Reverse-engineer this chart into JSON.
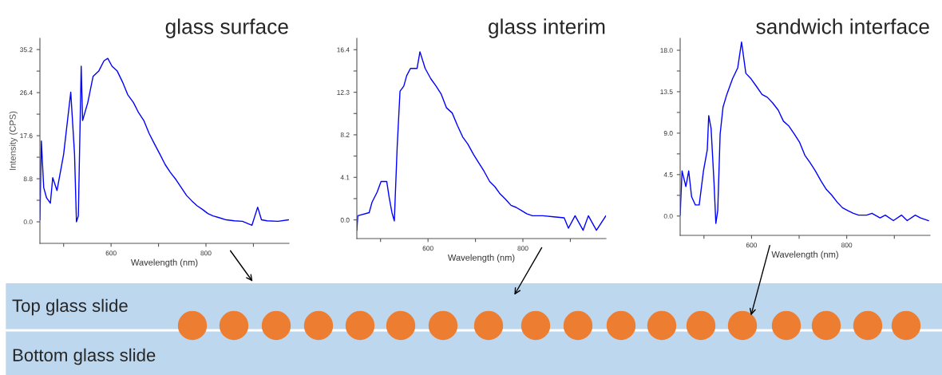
{
  "chart_data": [
    {
      "type": "line",
      "title": "glass surface",
      "xlabel": "Wavelength (nm)",
      "ylabel": "Intensity (CPS)",
      "x": [
        450,
        453,
        458,
        464,
        472,
        477,
        486,
        500,
        515,
        523,
        527,
        531,
        537,
        540,
        551,
        562,
        574,
        585,
        593,
        602,
        613,
        624,
        635,
        647,
        658,
        669,
        680,
        691,
        703,
        714,
        725,
        737,
        748,
        759,
        770,
        781,
        793,
        804,
        815,
        826,
        843,
        860,
        877,
        897,
        909,
        917,
        929,
        952,
        974
      ],
      "series": [
        {
          "color": "#0000ff",
          "values": [
            0.4,
            16.5,
            7,
            4.9,
            3.8,
            9,
            6.4,
            13.8,
            26.5,
            13.8,
            0,
            1.2,
            31.8,
            20.7,
            24.4,
            29.7,
            30.8,
            32.9,
            33.4,
            31.8,
            30.8,
            28.6,
            26,
            24.4,
            22.3,
            20.7,
            18.1,
            16,
            13.8,
            11.7,
            10.1,
            8.6,
            7,
            5.4,
            4.3,
            3.3,
            2.5,
            1.7,
            1.2,
            0.9,
            0.4,
            0.2,
            0.1,
            -0.7,
            3,
            0.4,
            0.2,
            0.1,
            0.4
          ]
        }
      ],
      "xlim": [
        450,
        975
      ],
      "ylim": [
        -4.4,
        37.5
      ],
      "xticks": [
        {
          "value": 500,
          "label": null
        },
        600,
        {
          "value": 700,
          "label": null
        },
        800,
        {
          "value": 900,
          "label": null
        }
      ],
      "yticks": [
        {
          "value": 0,
          "label": "0.0"
        },
        {
          "value": 4.4,
          "label": null
        },
        8.8,
        {
          "value": 13.2,
          "label": null
        },
        17.6,
        {
          "value": 22,
          "label": null
        },
        26.4,
        {
          "value": 30.8,
          "label": null
        },
        35.2
      ],
      "grid": false,
      "legend": false
    },
    {
      "type": "line",
      "title": "glass interim",
      "xlabel": "Wavelength (nm)",
      "x": [
        450,
        452,
        476,
        482,
        493,
        501,
        513,
        518,
        524,
        529,
        535,
        541,
        549,
        555,
        563,
        577,
        583,
        594,
        606,
        617,
        628,
        639,
        651,
        662,
        673,
        684,
        696,
        707,
        718,
        730,
        741,
        752,
        763,
        775,
        786,
        797,
        808,
        820,
        842,
        865,
        887,
        896,
        910,
        927,
        938,
        955,
        975
      ],
      "series": [
        {
          "color": "#0000ff",
          "values": [
            -1,
            0.4,
            0.7,
            1.7,
            2.7,
            3.7,
            3.7,
            2.2,
            0.7,
            -0.1,
            7,
            12.4,
            12.9,
            13.9,
            14.6,
            14.6,
            16.2,
            14.6,
            13.6,
            12.9,
            12.1,
            10.8,
            10.3,
            9.1,
            8,
            7.3,
            6.3,
            5.5,
            4.7,
            3.7,
            3.2,
            2.5,
            2,
            1.4,
            1.2,
            0.9,
            0.6,
            0.4,
            0.4,
            0.3,
            0.2,
            -0.8,
            0.4,
            -1,
            0.4,
            -1,
            0.4
          ]
        }
      ],
      "xlim": [
        450,
        975
      ],
      "ylim": [
        -1.8,
        17.5
      ],
      "xticks": [
        {
          "value": 500,
          "label": null
        },
        600,
        {
          "value": 700,
          "label": null
        },
        800,
        {
          "value": 900,
          "label": null
        }
      ],
      "yticks": [
        {
          "value": 0,
          "label": "0.0"
        },
        {
          "value": 2.05,
          "label": null
        },
        4.1,
        {
          "value": 6.15,
          "label": null
        },
        8.2,
        {
          "value": 10.25,
          "label": null
        },
        12.3,
        {
          "value": 14.35,
          "label": null
        },
        16.4
      ],
      "grid": false,
      "legend": false
    },
    {
      "type": "line",
      "title": "sandwich interface",
      "xlabel": "Wavelength (nm)",
      "x": [
        450,
        454,
        462,
        468,
        474,
        482,
        490,
        499,
        507,
        510,
        515,
        521,
        525,
        529,
        534,
        540,
        548,
        560,
        571,
        579,
        588,
        599,
        610,
        622,
        633,
        644,
        656,
        667,
        678,
        690,
        701,
        712,
        723,
        734,
        746,
        757,
        768,
        780,
        791,
        802,
        814,
        825,
        842,
        853,
        870,
        881,
        898,
        915,
        927,
        944,
        955,
        972
      ],
      "series": [
        {
          "color": "#0000ff",
          "values": [
            0.1,
            4.9,
            3.2,
            4.9,
            2.1,
            1.2,
            1.2,
            4.9,
            7.2,
            10.9,
            9.5,
            3.8,
            -0.8,
            0.6,
            8.9,
            11.8,
            13.2,
            14.9,
            16.1,
            18.9,
            15.5,
            14.9,
            14.1,
            13.2,
            12.9,
            12.3,
            11.5,
            10.3,
            9.8,
            8.9,
            8,
            6.6,
            5.8,
            4.9,
            3.8,
            2.9,
            2.3,
            1.5,
            0.9,
            0.6,
            0.3,
            0.1,
            0.1,
            0.3,
            -0.2,
            0.1,
            -0.5,
            0.1,
            -0.5,
            0.1,
            -0.2,
            -0.5
          ]
        }
      ],
      "xlim": [
        450,
        975
      ],
      "ylim": [
        -2.1,
        19.3
      ],
      "xticks": [
        {
          "value": 500,
          "label": null
        },
        600,
        {
          "value": 700,
          "label": null
        },
        800,
        {
          "value": 900,
          "label": null
        }
      ],
      "yticks": [
        {
          "value": 0,
          "label": "0.0"
        },
        {
          "value": 2.25,
          "label": null
        },
        4.5,
        {
          "value": 6.75,
          "label": null
        },
        {
          "value": 9,
          "label": "9.0"
        },
        {
          "value": 11.25,
          "label": null
        },
        13.5,
        {
          "value": 15.75,
          "label": null
        },
        {
          "value": 18,
          "label": "18.0"
        }
      ],
      "grid": false,
      "legend": false
    },
    {
      "type": "other",
      "annotations": [
        "Top glass slide",
        "Bottom glass slide"
      ]
    }
  ]
}
